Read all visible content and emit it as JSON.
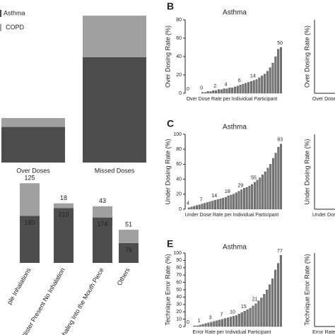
{
  "chart_data": [
    {
      "type": "stacked_bar",
      "categories": [
        "Over Doses",
        "Missed Doses"
      ],
      "ylim": [
        0,
        200
      ],
      "series": [
        {
          "name": "Asthma",
          "color": "#4d4d4d",
          "values": [
            48,
            142
          ]
        },
        {
          "name": "COPD",
          "color": "#a0a0a0",
          "values": [
            12,
            56
          ]
        }
      ]
    },
    {
      "type": "stacked_bar",
      "categories": [
        "ple Inhalations",
        "Blister Present No Inhalation",
        "Exhaling Into the Mouth Piece",
        "Others"
      ],
      "ylim": [
        0,
        330
      ],
      "data_labels": true,
      "series": [
        {
          "name": "Asthma",
          "color": "#4d4d4d",
          "values": [
            180,
            210,
            174,
            76
          ]
        },
        {
          "name": "COPD",
          "color": "#a0a0a0",
          "values": [
            125,
            18,
            43,
            51
          ]
        }
      ]
    },
    {
      "type": "sorted_bar",
      "panel": "B",
      "title": "Asthma",
      "ylabel": "Over Dosing Rate (%)",
      "xlabel": "Over Dose Rate per Individual Participant",
      "ylim": [
        0,
        80
      ],
      "yticks": [
        0,
        20,
        40,
        60,
        80
      ],
      "color": "#777777",
      "values": [
        0,
        0,
        0,
        0,
        0,
        1,
        1,
        2,
        2,
        3,
        3,
        4,
        4,
        5,
        5,
        6,
        6,
        7,
        8,
        9,
        10,
        11,
        12,
        13,
        14,
        15,
        17,
        19,
        21,
        24,
        28,
        33,
        40,
        48,
        50
      ],
      "annotations": [
        "0",
        "0",
        "2",
        "4",
        "6",
        "14",
        "50"
      ],
      "side_ylabel": "Over Dosing Rate (%)",
      "side_xlabel": "Over Dose Rate"
    },
    {
      "type": "sorted_bar",
      "panel": "C",
      "title": "Asthma",
      "ylabel": "Under Dosing Rate (%)",
      "xlabel": "Under Dose Rate per Individual Participant",
      "ylim": [
        0,
        100
      ],
      "yticks": [
        0,
        20,
        40,
        60,
        80,
        100
      ],
      "color": "#777777",
      "values": [
        2,
        3,
        4,
        5,
        6,
        7,
        8,
        9,
        10,
        11,
        12,
        13,
        14,
        15,
        16,
        18,
        19,
        20,
        22,
        24,
        26,
        28,
        29,
        31,
        33,
        36,
        39,
        42,
        46,
        50,
        55,
        60,
        68,
        75,
        83,
        87
      ],
      "annotations": [
        "4",
        "7",
        "14",
        "18",
        "29",
        "55",
        "83"
      ],
      "side_ylabel": "Under Dosing Rate (%)",
      "side_xlabel": "Under Dose Ra"
    },
    {
      "type": "sorted_bar",
      "panel": "E",
      "title": "Asthma",
      "ylabel": "Technique Error Rate (%)",
      "xlabel": "Error Rate per Individual Participant",
      "ylim": [
        0,
        100
      ],
      "yticks": [
        0,
        10,
        20,
        30,
        40,
        50,
        60,
        70,
        80,
        90,
        100
      ],
      "color": "#777777",
      "values": [
        0,
        0,
        1,
        1,
        2,
        3,
        4,
        5,
        6,
        7,
        8,
        9,
        10,
        11,
        12,
        13,
        14,
        15,
        17,
        19,
        21,
        23,
        25,
        28,
        31,
        35,
        39,
        44,
        50,
        57,
        65,
        77,
        86,
        97
      ],
      "annotations": [
        "0",
        "1",
        "3",
        "7",
        "10",
        "15",
        "21",
        "77"
      ],
      "side_ylabel": "Technique Error Rate (%)",
      "side_xlabel": "Error Rate pe"
    }
  ]
}
